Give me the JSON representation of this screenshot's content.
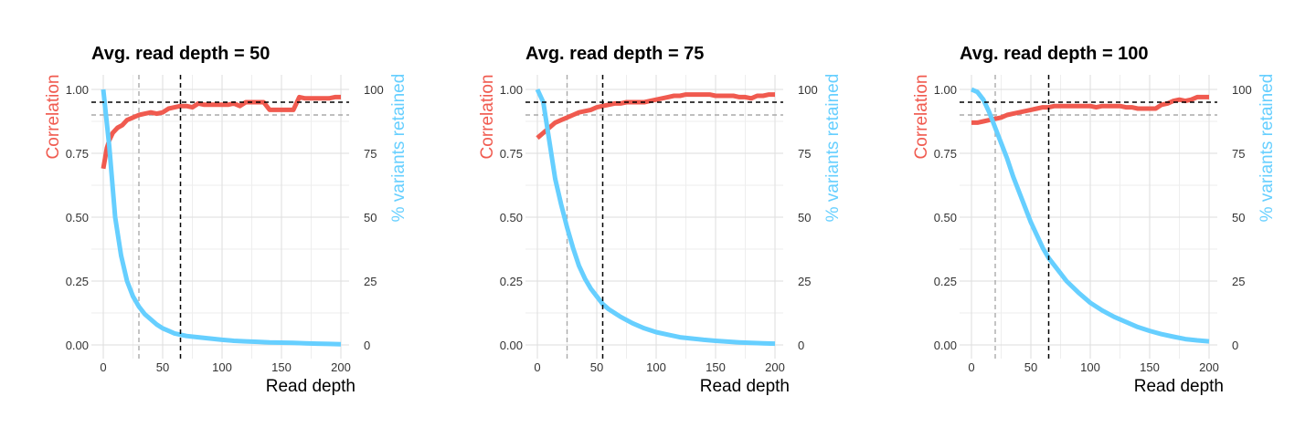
{
  "chart_data": [
    {
      "type": "line",
      "title": "Avg. read depth = 50",
      "xlabel": "Read depth",
      "ylabel_left": "Correlation",
      "ylabel_right": "% variants retained",
      "xlim": [
        0,
        200
      ],
      "ylim_left": [
        0,
        1
      ],
      "ylim_right": [
        0,
        100
      ],
      "xticks": [
        "0",
        "50",
        "100",
        "150",
        "200"
      ],
      "yticks_left": [
        "0.00",
        "0.25",
        "0.50",
        "0.75",
        "1.00"
      ],
      "yticks_right": [
        "0",
        "25",
        "50",
        "75",
        "100"
      ],
      "hlines": [
        0.95,
        0.9
      ],
      "vlines": {
        "gray": 30,
        "black": 65
      },
      "series": [
        {
          "color": "#f05a4f",
          "axis": "left",
          "x": [
            0,
            3,
            5,
            8,
            12,
            16,
            20,
            25,
            30,
            35,
            40,
            45,
            50,
            55,
            60,
            65,
            70,
            75,
            80,
            85,
            90,
            95,
            100,
            105,
            110,
            115,
            120,
            125,
            130,
            135,
            140,
            145,
            150,
            155,
            160,
            165,
            170,
            175,
            180,
            185,
            190,
            195,
            200
          ],
          "y": [
            0.69,
            0.77,
            0.8,
            0.83,
            0.85,
            0.86,
            0.88,
            0.89,
            0.9,
            0.905,
            0.91,
            0.905,
            0.91,
            0.925,
            0.93,
            0.935,
            0.935,
            0.93,
            0.945,
            0.94,
            0.94,
            0.94,
            0.94,
            0.94,
            0.945,
            0.935,
            0.95,
            0.95,
            0.95,
            0.95,
            0.92,
            0.92,
            0.92,
            0.92,
            0.92,
            0.97,
            0.965,
            0.965,
            0.965,
            0.965,
            0.965,
            0.97,
            0.97
          ]
        },
        {
          "color": "#66cfff",
          "axis": "right",
          "x": [
            0,
            5,
            10,
            15,
            20,
            25,
            30,
            35,
            40,
            45,
            50,
            55,
            60,
            65,
            70,
            80,
            90,
            100,
            110,
            120,
            130,
            140,
            150,
            160,
            170,
            180,
            190,
            200
          ],
          "y": [
            100,
            78,
            50,
            35,
            25,
            19,
            15,
            12,
            10,
            8,
            6.5,
            5.5,
            4.5,
            4,
            3.5,
            3,
            2.5,
            2,
            1.6,
            1.4,
            1.2,
            1.0,
            0.9,
            0.8,
            0.6,
            0.5,
            0.4,
            0.3
          ]
        }
      ]
    },
    {
      "type": "line",
      "title": "Avg. read depth = 75",
      "xlabel": "Read depth",
      "ylabel_left": "Correlation",
      "ylabel_right": "% variants retained",
      "xlim": [
        0,
        200
      ],
      "ylim_left": [
        0,
        1
      ],
      "ylim_right": [
        0,
        100
      ],
      "xticks": [
        "0",
        "50",
        "100",
        "150",
        "200"
      ],
      "yticks_left": [
        "0.00",
        "0.25",
        "0.50",
        "0.75",
        "1.00"
      ],
      "yticks_right": [
        "0",
        "25",
        "50",
        "75",
        "100"
      ],
      "hlines": [
        0.95,
        0.9
      ],
      "vlines": {
        "gray": 25,
        "black": 55
      },
      "series": [
        {
          "color": "#f05a4f",
          "axis": "left",
          "x": [
            0,
            5,
            10,
            15,
            20,
            25,
            30,
            35,
            40,
            45,
            50,
            55,
            60,
            65,
            70,
            75,
            80,
            85,
            90,
            95,
            100,
            105,
            110,
            115,
            120,
            125,
            130,
            135,
            140,
            145,
            150,
            155,
            160,
            165,
            170,
            175,
            180,
            185,
            190,
            195,
            200
          ],
          "y": [
            0.81,
            0.83,
            0.85,
            0.87,
            0.88,
            0.89,
            0.9,
            0.91,
            0.915,
            0.92,
            0.93,
            0.935,
            0.94,
            0.945,
            0.945,
            0.95,
            0.95,
            0.95,
            0.95,
            0.955,
            0.96,
            0.965,
            0.97,
            0.975,
            0.975,
            0.98,
            0.98,
            0.98,
            0.98,
            0.98,
            0.975,
            0.975,
            0.975,
            0.975,
            0.97,
            0.97,
            0.965,
            0.975,
            0.975,
            0.98,
            0.98
          ]
        },
        {
          "color": "#66cfff",
          "axis": "right",
          "x": [
            0,
            5,
            10,
            15,
            20,
            25,
            30,
            35,
            40,
            45,
            50,
            55,
            60,
            65,
            70,
            80,
            90,
            100,
            110,
            120,
            130,
            140,
            150,
            160,
            170,
            180,
            190,
            200
          ],
          "y": [
            100,
            95,
            80,
            65,
            55,
            46,
            38,
            31,
            26,
            22,
            19,
            16,
            14,
            12.5,
            11,
            8.5,
            6.5,
            5,
            4,
            3,
            2.5,
            2,
            1.6,
            1.3,
            1,
            0.8,
            0.6,
            0.5
          ]
        }
      ]
    },
    {
      "type": "line",
      "title": "Avg. read depth = 100",
      "xlabel": "Read depth",
      "ylabel_left": "Correlation",
      "ylabel_right": "% variants retained",
      "xlim": [
        0,
        200
      ],
      "ylim_left": [
        0,
        1
      ],
      "ylim_right": [
        0,
        100
      ],
      "xticks": [
        "0",
        "50",
        "100",
        "150",
        "200"
      ],
      "yticks_left": [
        "0.00",
        "0.25",
        "0.50",
        "0.75",
        "1.00"
      ],
      "yticks_right": [
        "0",
        "25",
        "50",
        "75",
        "100"
      ],
      "hlines": [
        0.95,
        0.9
      ],
      "vlines": {
        "gray": 20,
        "black": 65
      },
      "series": [
        {
          "color": "#f05a4f",
          "axis": "left",
          "x": [
            0,
            5,
            10,
            15,
            20,
            25,
            30,
            35,
            40,
            45,
            50,
            55,
            60,
            65,
            70,
            75,
            80,
            85,
            90,
            95,
            100,
            105,
            110,
            115,
            120,
            125,
            130,
            135,
            140,
            145,
            150,
            155,
            160,
            165,
            170,
            175,
            180,
            185,
            190,
            195,
            200
          ],
          "y": [
            0.87,
            0.87,
            0.875,
            0.88,
            0.885,
            0.89,
            0.9,
            0.905,
            0.91,
            0.915,
            0.92,
            0.925,
            0.93,
            0.93,
            0.935,
            0.935,
            0.935,
            0.935,
            0.935,
            0.935,
            0.935,
            0.93,
            0.935,
            0.935,
            0.935,
            0.935,
            0.93,
            0.93,
            0.925,
            0.925,
            0.925,
            0.925,
            0.94,
            0.945,
            0.955,
            0.96,
            0.955,
            0.96,
            0.97,
            0.97,
            0.97
          ]
        },
        {
          "color": "#66cfff",
          "axis": "right",
          "x": [
            0,
            5,
            10,
            15,
            20,
            25,
            30,
            35,
            40,
            45,
            50,
            55,
            60,
            65,
            70,
            80,
            90,
            100,
            110,
            120,
            130,
            140,
            150,
            160,
            170,
            180,
            190,
            200
          ],
          "y": [
            100,
            99,
            96,
            91,
            85,
            79,
            73,
            66,
            60,
            54,
            48,
            43,
            38,
            34,
            31,
            25,
            20.5,
            16.5,
            13.5,
            11,
            9,
            7,
            5.5,
            4.2,
            3.2,
            2.3,
            1.8,
            1.4
          ]
        }
      ]
    }
  ]
}
